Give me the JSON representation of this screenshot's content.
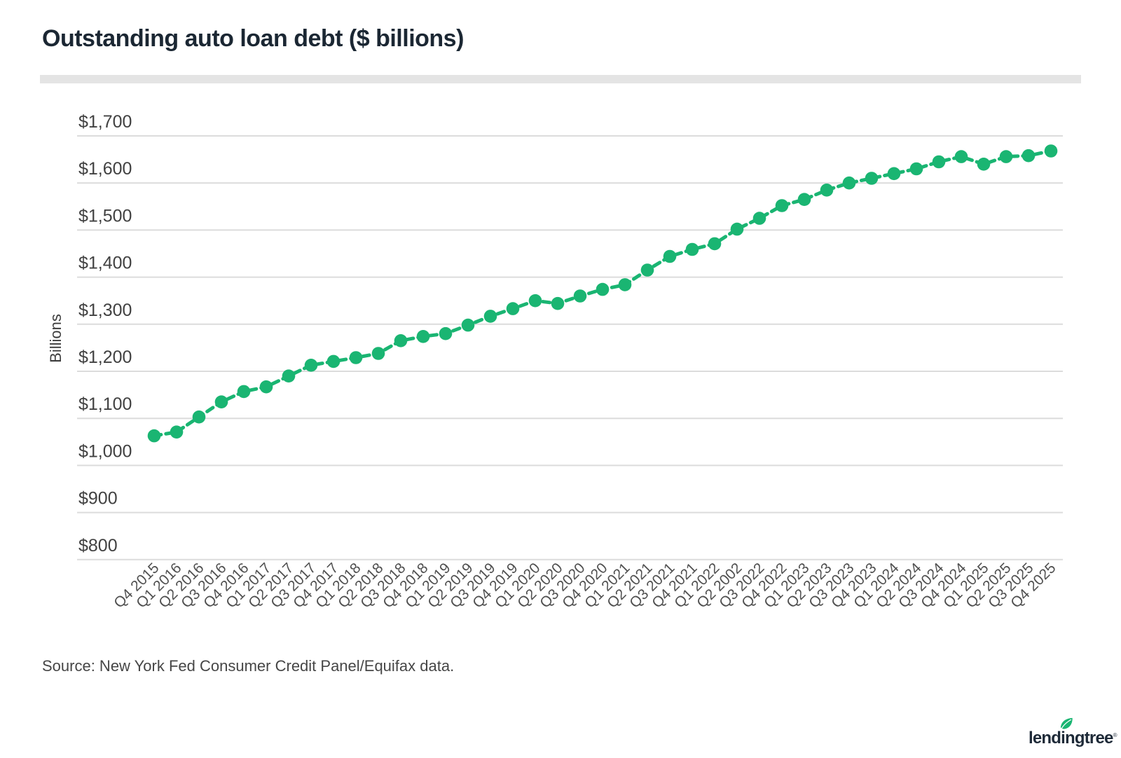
{
  "page": {
    "title": "Outstanding auto loan debt ($ billions)",
    "source": "Source: New York Fed Consumer Credit Panel/Equifax data.",
    "brand": "lendingtree"
  },
  "chart_data": {
    "type": "line",
    "title": "Outstanding auto loan debt ($ billions)",
    "xlabel": "",
    "ylabel": "Billions",
    "categories": [
      "Q4 2015",
      "Q1 2016",
      "Q2 2016",
      "Q3 2016",
      "Q4 2016",
      "Q1 2017",
      "Q2 2017",
      "Q3 2017",
      "Q4 2017",
      "Q1 2018",
      "Q2 2018",
      "Q3 2018",
      "Q4 2018",
      "Q1 2019",
      "Q2 2019",
      "Q3 2019",
      "Q4 2019",
      "Q1 2020",
      "Q2 2020",
      "Q3 2020",
      "Q4 2020",
      "Q1 2021",
      "Q2 2021",
      "Q3 2021",
      "Q4 2021",
      "Q1 2022",
      "Q2 2002",
      "Q3 2022",
      "Q4 2022",
      "Q1 2023",
      "Q2 2023",
      "Q3 2023",
      "Q4 2023",
      "Q1 2024",
      "Q2 2024",
      "Q3 2024",
      "Q4 2024",
      "Q1 2025",
      "Q2 2025",
      "Q3 2025",
      "Q4 2025"
    ],
    "series": [
      {
        "name": "Outstanding auto loan debt ($ billions)",
        "values": [
          1063,
          1071,
          1103,
          1135,
          1157,
          1167,
          1190,
          1213,
          1221,
          1229,
          1238,
          1265,
          1274,
          1280,
          1298,
          1317,
          1333,
          1350,
          1344,
          1360,
          1374,
          1384,
          1415,
          1444,
          1459,
          1471,
          1502,
          1525,
          1552,
          1565,
          1585,
          1600,
          1610,
          1620,
          1630,
          1645,
          1656,
          1640,
          1656,
          1658,
          1668
        ]
      }
    ],
    "ylim": [
      800,
      1700
    ],
    "ytick_step": 100,
    "ytick_labels": [
      "$1,700",
      "$1,600",
      "$1,500",
      "$1,400",
      "$1,300",
      "$1,200",
      "$1,100",
      "$1,000",
      "$900",
      "$800"
    ],
    "grid": "horizontal-only",
    "legend": "none",
    "line_style": "dashed",
    "marker": "filled-circle",
    "colors": {
      "line": "#1ab572",
      "marker": "#1ab572",
      "grid": "#dcdcdc",
      "title_text": "#1b2733",
      "axis_text": "#505050",
      "ytick_text": "#414141",
      "divider": "#e4e4e4"
    }
  }
}
